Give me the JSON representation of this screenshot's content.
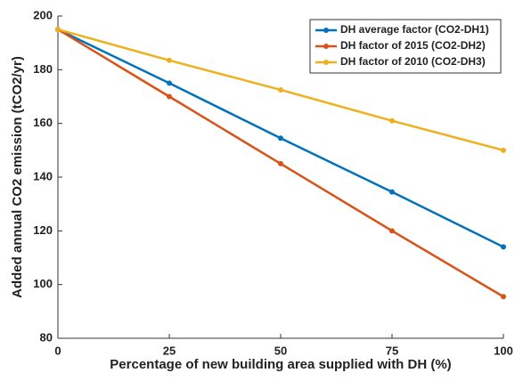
{
  "chart_data": {
    "type": "line",
    "x_label": "Percentage of new building area supplied with DH (%)",
    "y_label": "Added annual CO2 emission (tCO2/yr)",
    "x": [
      0,
      25,
      50,
      75,
      100
    ],
    "series": [
      {
        "name": "DH average factor (CO2-DH1)",
        "color": "#0072bd",
        "values": [
          195,
          175,
          154.5,
          134.5,
          114
        ]
      },
      {
        "name": "DH factor of 2015 (CO2-DH2)",
        "color": "#d95319",
        "values": [
          195,
          170,
          145,
          120,
          95.5
        ]
      },
      {
        "name": "DH factor of 2010 (CO2-DH3)",
        "color": "#edb120",
        "values": [
          195,
          183.5,
          172.5,
          161,
          150
        ]
      }
    ],
    "xlim": [
      0,
      100
    ],
    "xticks": [
      0,
      25,
      50,
      75,
      100
    ],
    "ylim": [
      80,
      200
    ],
    "yticks": [
      80,
      100,
      120,
      140,
      160,
      180,
      200
    ],
    "legend": "upper right",
    "grid": false
  }
}
